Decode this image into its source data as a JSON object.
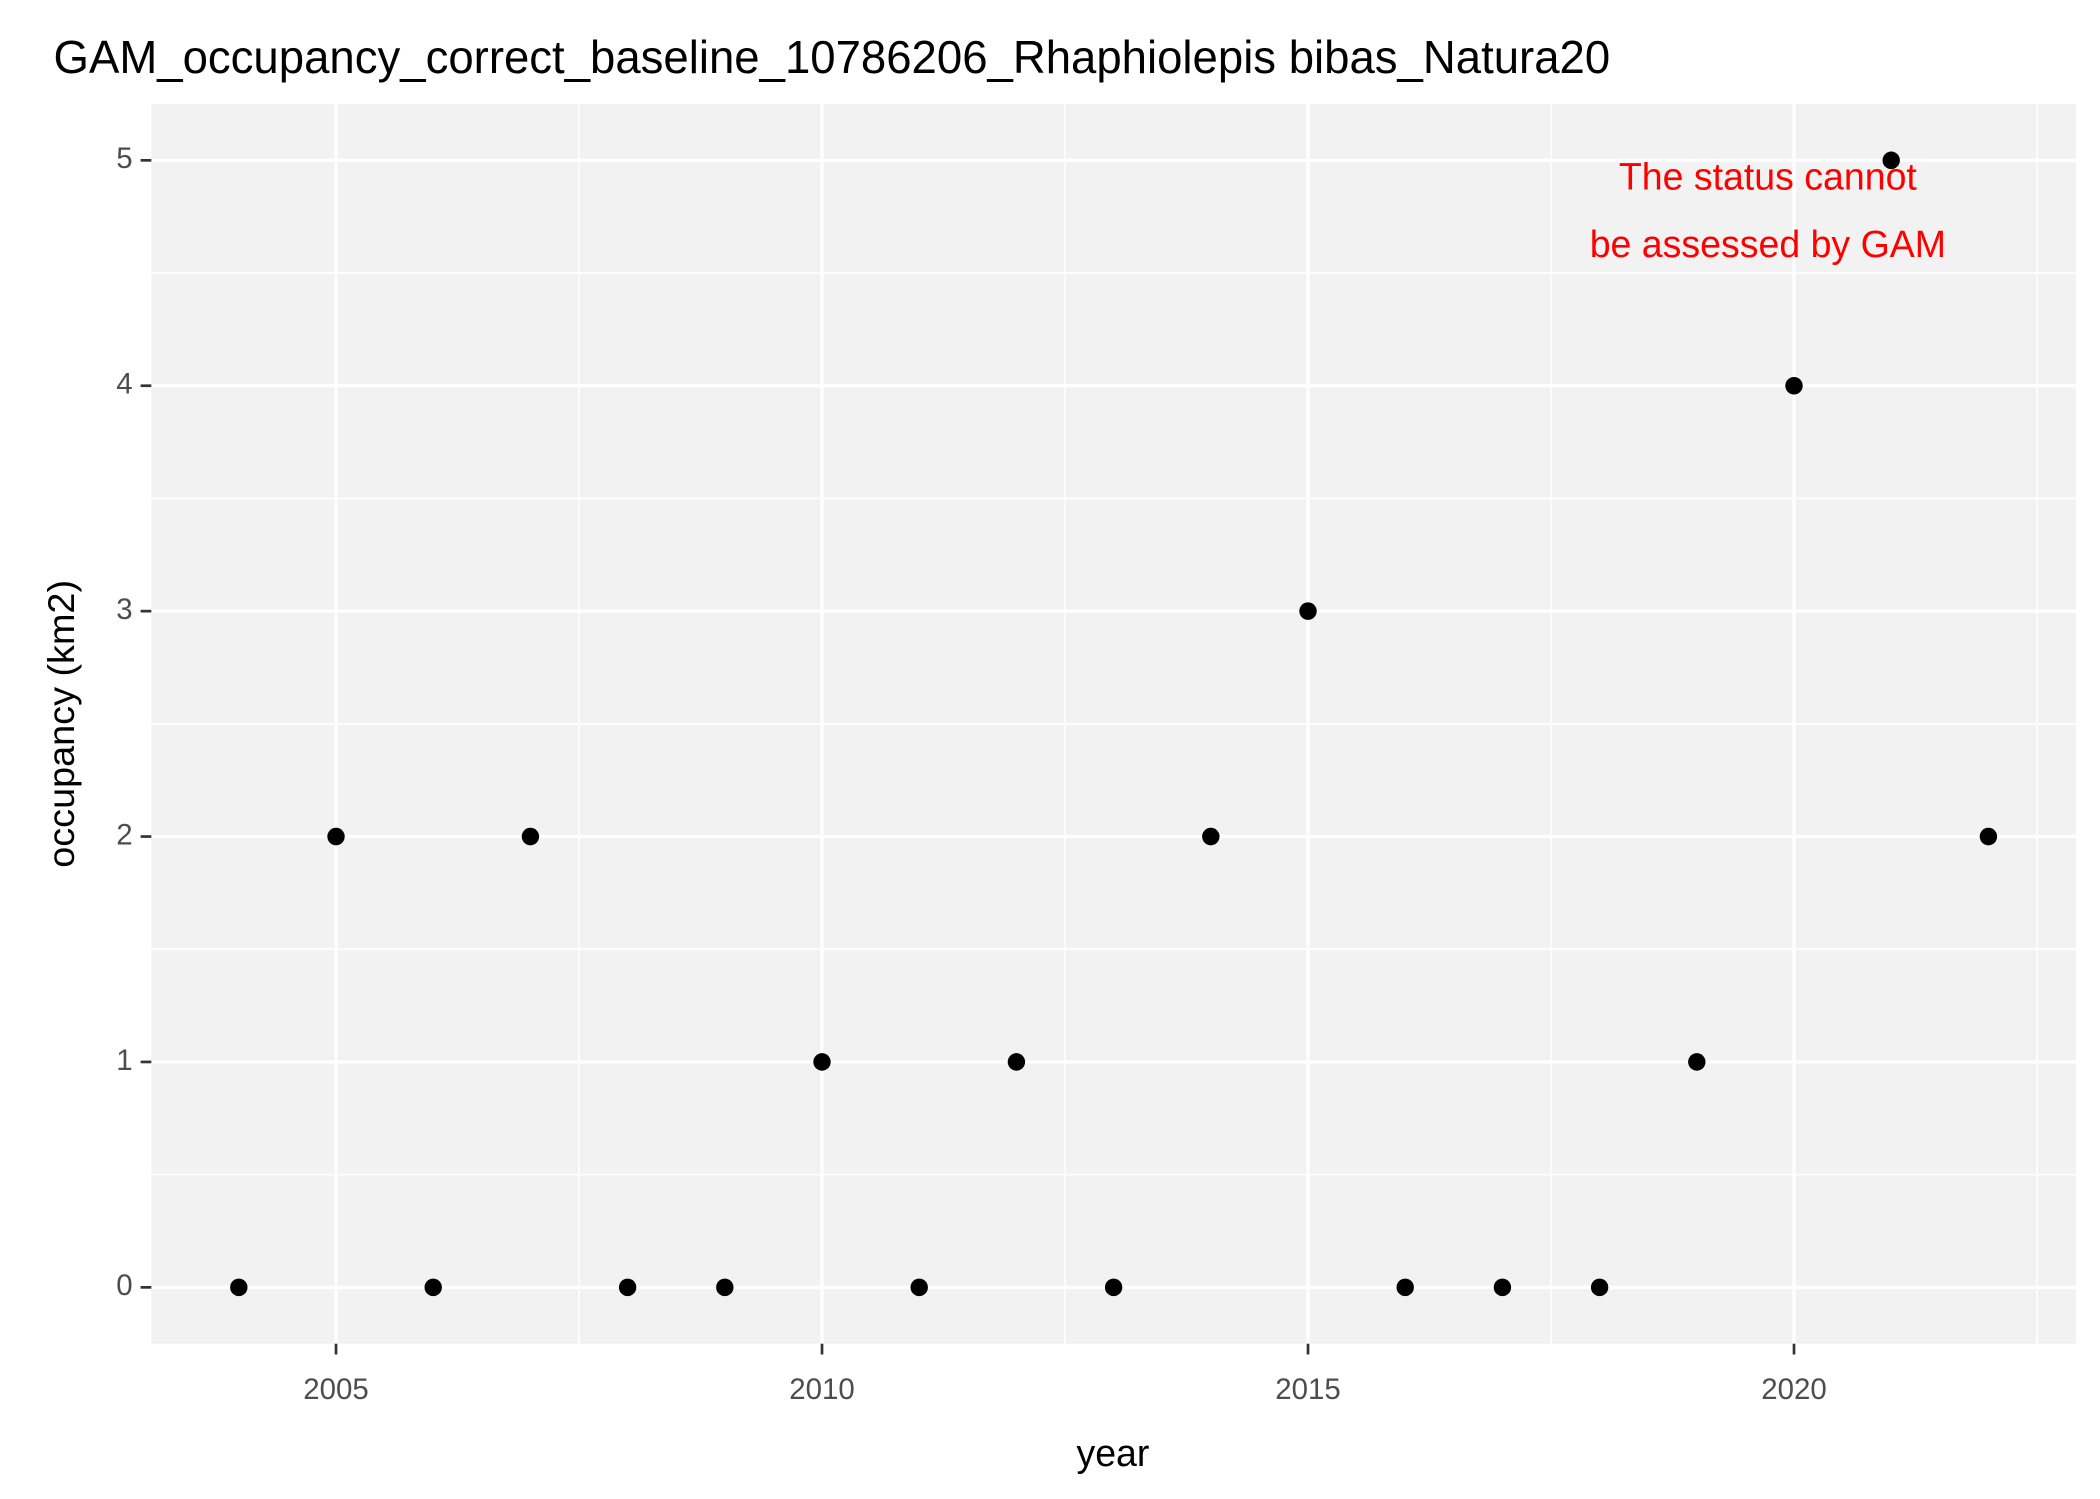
{
  "chart_data": {
    "type": "scatter",
    "title": "GAM_occupancy_correct_baseline_10786206_Rhaphiolepis bibas_Natura20",
    "xlabel": "year",
    "ylabel": "occupancy (km2)",
    "annotation": [
      "The status cannot",
      "be assessed by GAM"
    ],
    "annotation_color": "#ff0000",
    "x": [
      2004,
      2005,
      2006,
      2007,
      2008,
      2009,
      2010,
      2011,
      2012,
      2013,
      2014,
      2015,
      2016,
      2017,
      2018,
      2019,
      2020,
      2021,
      2022
    ],
    "values": [
      0,
      2,
      0,
      2,
      0,
      0,
      1,
      0,
      1,
      0,
      2,
      3,
      0,
      0,
      0,
      1,
      4,
      5,
      2
    ],
    "color": "#000000",
    "xlim": [
      2003.1,
      2022.9
    ],
    "ylim": [
      -0.25,
      5.25
    ],
    "xticks": [
      2005,
      2010,
      2015,
      2020
    ],
    "yticks": [
      0,
      1,
      2,
      3,
      4,
      5
    ],
    "x_minor_breaks": [
      2007.5,
      2012.5,
      2017.5,
      2022.5
    ],
    "y_minor_breaks": [
      0.5,
      1.5,
      2.5,
      3.5,
      4.5
    ],
    "grid": true
  }
}
